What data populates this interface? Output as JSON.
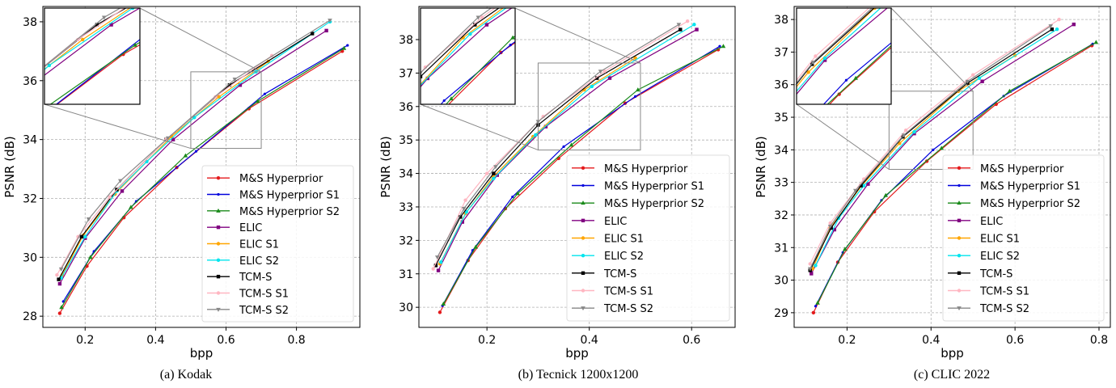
{
  "series_styles": [
    {
      "name": "M&S Hyperprior",
      "color": "#e41a1c",
      "marker": "circle"
    },
    {
      "name": "M&S Hyperprior S1",
      "color": "#0000dd",
      "marker": "dot"
    },
    {
      "name": "M&S Hyperprior S2",
      "color": "#1a8a1a",
      "marker": "triangle-up"
    },
    {
      "name": "ELIC",
      "color": "#800080",
      "marker": "square"
    },
    {
      "name": "ELIC S1",
      "color": "#ffa500",
      "marker": "circle"
    },
    {
      "name": "ELIC S2",
      "color": "#00e5ee",
      "marker": "circle"
    },
    {
      "name": "TCM-S",
      "color": "#000000",
      "marker": "square"
    },
    {
      "name": "TCM-S S1",
      "color": "#ffb6c1",
      "marker": "circle"
    },
    {
      "name": "TCM-S S2",
      "color": "#888888",
      "marker": "triangle-down"
    }
  ],
  "chart_data": [
    {
      "type": "line",
      "caption": "(a) Kodak",
      "xlabel": "bpp",
      "ylabel": "PSNR (dB)",
      "xlim": [
        0.08,
        0.98
      ],
      "ylim": [
        27.62,
        38.52
      ],
      "grid": true,
      "legend": "lower-right",
      "xticks": [
        0.2,
        0.4,
        0.6,
        0.8
      ],
      "xticklabels": [
        "0.2",
        "0.4",
        "0.6",
        "0.8"
      ],
      "yticks": [
        28,
        30,
        32,
        34,
        36,
        38
      ],
      "yticklabels": [
        "28",
        "30",
        "32",
        "34",
        "36",
        "38"
      ],
      "inset": {
        "xlim": [
          0.5,
          0.7
        ],
        "ylim": [
          33.7,
          36.3
        ],
        "position": "top-left"
      },
      "series": [
        {
          "name": "M&S Hyperprior",
          "x": [
            0.128,
            0.205,
            0.31,
            0.46,
            0.665,
            0.93
          ],
          "y": [
            28.1,
            29.7,
            31.35,
            33.05,
            35.05,
            37.0
          ]
        },
        {
          "name": "M&S Hyperprior S1",
          "x": [
            0.138,
            0.225,
            0.345,
            0.515,
            0.71,
            0.945
          ],
          "y": [
            28.5,
            30.2,
            31.9,
            33.6,
            35.55,
            37.2
          ]
        },
        {
          "name": "M&S Hyperprior S2",
          "x": [
            0.133,
            0.215,
            0.33,
            0.485,
            0.69,
            0.935
          ],
          "y": [
            28.3,
            30.0,
            31.7,
            33.45,
            35.3,
            37.1
          ]
        },
        {
          "name": "ELIC",
          "x": [
            0.128,
            0.2,
            0.305,
            0.45,
            0.64,
            0.885
          ],
          "y": [
            29.1,
            30.65,
            32.25,
            34.0,
            35.85,
            37.7
          ]
        },
        {
          "name": "ELIC S1",
          "x": [
            0.135,
            0.195,
            0.285,
            0.445,
            0.58,
            0.72
          ],
          "y": [
            29.4,
            30.75,
            32.15,
            34.1,
            35.45,
            36.65
          ]
        },
        {
          "name": "ELIC S2",
          "x": [
            0.132,
            0.2,
            0.29,
            0.375,
            0.51,
            0.685,
            0.895
          ],
          "y": [
            29.3,
            30.7,
            32.25,
            33.25,
            34.75,
            36.3,
            38.0
          ]
        },
        {
          "name": "TCM-S",
          "x": [
            0.125,
            0.19,
            0.29,
            0.43,
            0.61,
            0.845
          ],
          "y": [
            29.25,
            30.7,
            32.3,
            34.0,
            35.85,
            37.6
          ]
        },
        {
          "name": "TCM-S S1",
          "x": [
            0.12,
            0.18,
            0.27,
            0.43,
            0.57,
            0.73
          ],
          "y": [
            29.4,
            30.7,
            32.05,
            34.0,
            35.45,
            36.85
          ]
        },
        {
          "name": "TCM-S S2",
          "x": [
            0.132,
            0.21,
            0.3,
            0.435,
            0.625,
            0.895
          ],
          "y": [
            29.6,
            31.3,
            32.6,
            34.05,
            36.05,
            38.05
          ]
        }
      ]
    },
    {
      "type": "line",
      "caption": "(b) Tecnick 1200x1200",
      "xlabel": "bpp",
      "ylabel": "PSNR (dB)",
      "xlim": [
        0.067,
        0.685
      ],
      "ylim": [
        29.4,
        38.99
      ],
      "grid": true,
      "legend": "lower-right",
      "xticks": [
        0.2,
        0.4,
        0.6
      ],
      "xticklabels": [
        "0.2",
        "0.4",
        "0.6"
      ],
      "yticks": [
        30,
        31,
        32,
        33,
        34,
        35,
        36,
        37,
        38
      ],
      "yticklabels": [
        "30",
        "31",
        "32",
        "33",
        "34",
        "35",
        "36",
        "37",
        "38"
      ],
      "inset": {
        "xlim": [
          0.3,
          0.5
        ],
        "ylim": [
          34.7,
          37.3
        ],
        "position": "top-left"
      },
      "series": [
        {
          "name": "M&S Hyperprior",
          "x": [
            0.108,
            0.163,
            0.236,
            0.34,
            0.47,
            0.652
          ],
          "y": [
            29.85,
            31.4,
            32.95,
            34.45,
            36.1,
            37.7
          ]
        },
        {
          "name": "M&S Hyperprior S1",
          "x": [
            0.113,
            0.172,
            0.25,
            0.35,
            0.49,
            0.655
          ],
          "y": [
            30.05,
            31.7,
            33.3,
            34.8,
            36.3,
            37.8
          ]
        },
        {
          "name": "M&S Hyperprior S2",
          "x": [
            0.115,
            0.178,
            0.26,
            0.365,
            0.495,
            0.662
          ],
          "y": [
            30.1,
            31.8,
            33.4,
            34.85,
            36.5,
            37.8
          ]
        },
        {
          "name": "ELIC",
          "x": [
            0.105,
            0.152,
            0.22,
            0.315,
            0.44,
            0.61
          ],
          "y": [
            31.1,
            32.55,
            33.95,
            35.4,
            36.85,
            38.3
          ]
        },
        {
          "name": "ELIC S1",
          "x": [
            0.108,
            0.158,
            0.212,
            0.29,
            0.39,
            0.49
          ],
          "y": [
            31.3,
            32.8,
            33.9,
            35.1,
            36.5,
            37.45
          ]
        },
        {
          "name": "ELIC S2",
          "x": [
            0.11,
            0.16,
            0.213,
            0.295,
            0.405,
            0.605
          ],
          "y": [
            31.35,
            32.85,
            33.85,
            35.15,
            36.6,
            38.45
          ]
        },
        {
          "name": "TCM-S",
          "x": [
            0.1,
            0.148,
            0.213,
            0.3,
            0.415,
            0.578
          ],
          "y": [
            31.25,
            32.7,
            34.0,
            35.45,
            36.85,
            38.3
          ]
        },
        {
          "name": "TCM-S S1",
          "x": [
            0.095,
            0.158,
            0.2,
            0.31,
            0.43,
            0.592
          ],
          "y": [
            31.15,
            33.2,
            34.0,
            35.7,
            37.05,
            38.55
          ]
        },
        {
          "name": "TCM-S S2",
          "x": [
            0.103,
            0.155,
            0.217,
            0.3,
            0.422,
            0.575
          ],
          "y": [
            31.5,
            32.95,
            34.2,
            35.55,
            37.05,
            38.45
          ]
        }
      ]
    },
    {
      "type": "line",
      "caption": "(c) CLIC 2022",
      "xlabel": "bpp",
      "ylabel": "PSNR (dB)",
      "xlim": [
        0.074,
        0.827
      ],
      "ylim": [
        28.55,
        38.4
      ],
      "grid": true,
      "legend": "lower-right",
      "xticks": [
        0.2,
        0.4,
        0.6,
        0.8
      ],
      "xticklabels": [
        "0.2",
        "0.4",
        "0.6",
        "0.8"
      ],
      "yticks": [
        29,
        30,
        31,
        32,
        33,
        34,
        35,
        36,
        37,
        38
      ],
      "yticklabels": [
        "29",
        "30",
        "31",
        "32",
        "33",
        "34",
        "35",
        "36",
        "37",
        "38"
      ],
      "inset": {
        "xlim": [
          0.3,
          0.5
        ],
        "ylim": [
          33.4,
          35.8
        ],
        "position": "top-left"
      },
      "series": [
        {
          "name": "M&S Hyperprior",
          "x": [
            0.12,
            0.178,
            0.265,
            0.39,
            0.555,
            0.783
          ],
          "y": [
            29.0,
            30.55,
            32.1,
            33.65,
            35.4,
            37.2
          ]
        },
        {
          "name": "M&S Hyperprior S1",
          "x": [
            0.125,
            0.19,
            0.282,
            0.405,
            0.573,
            0.785
          ],
          "y": [
            29.2,
            30.85,
            32.45,
            34.0,
            35.65,
            37.25
          ]
        },
        {
          "name": "M&S Hyperprior S2",
          "x": [
            0.13,
            0.195,
            0.292,
            0.425,
            0.587,
            0.793
          ],
          "y": [
            29.3,
            30.95,
            32.6,
            34.05,
            35.8,
            37.3
          ]
        },
        {
          "name": "ELIC",
          "x": [
            0.115,
            0.17,
            0.25,
            0.36,
            0.522,
            0.74
          ],
          "y": [
            30.2,
            31.55,
            32.95,
            34.5,
            36.1,
            37.85
          ]
        },
        {
          "name": "ELIC S1",
          "x": [
            0.118,
            0.16,
            0.235,
            0.325,
            0.465,
            0.6
          ],
          "y": [
            30.35,
            31.6,
            32.9,
            34.2,
            35.8,
            36.9
          ]
        },
        {
          "name": "ELIC S2",
          "x": [
            0.125,
            0.18,
            0.24,
            0.36,
            0.515,
            0.7
          ],
          "y": [
            30.45,
            31.9,
            32.9,
            34.55,
            36.2,
            37.7
          ]
        },
        {
          "name": "TCM-S",
          "x": [
            0.112,
            0.162,
            0.233,
            0.333,
            0.487,
            0.688
          ],
          "y": [
            30.3,
            31.6,
            32.9,
            34.4,
            36.05,
            37.7
          ]
        },
        {
          "name": "TCM-S S1",
          "x": [
            0.112,
            0.16,
            0.24,
            0.34,
            0.5,
            0.705
          ],
          "y": [
            30.5,
            31.75,
            33.1,
            34.6,
            36.3,
            38.0
          ]
        },
        {
          "name": "TCM-S S2",
          "x": [
            0.112,
            0.16,
            0.22,
            0.335,
            0.487,
            0.685
          ],
          "y": [
            30.35,
            31.65,
            32.75,
            34.45,
            36.1,
            37.8
          ]
        }
      ]
    }
  ]
}
